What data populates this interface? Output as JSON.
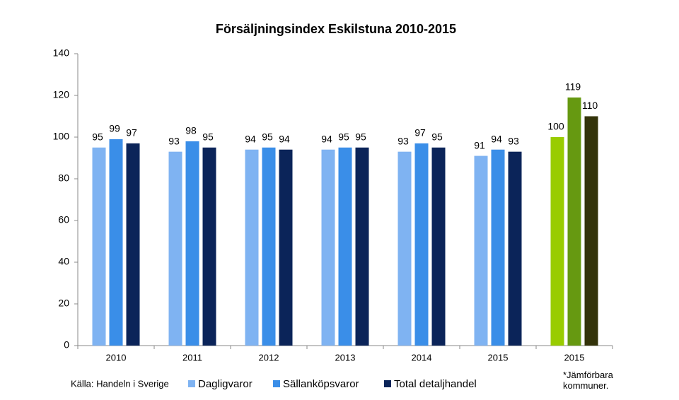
{
  "chart_data": {
    "type": "bar",
    "title": "Försäljningsindex Eskilstuna 2010-2015",
    "categories": [
      "2010",
      "2011",
      "2012",
      "2013",
      "2014",
      "2015",
      "2015"
    ],
    "series": [
      {
        "name": "Dagligvaror",
        "color": "#7fb3f2",
        "values": [
          95,
          93,
          94,
          94,
          93,
          91,
          100
        ],
        "colors": [
          "#7fb3f2",
          "#7fb3f2",
          "#7fb3f2",
          "#7fb3f2",
          "#7fb3f2",
          "#7fb3f2",
          "#99cc00"
        ]
      },
      {
        "name": "Sällanköpsvaror",
        "color": "#3a8ee8",
        "values": [
          99,
          98,
          95,
          95,
          97,
          94,
          119
        ],
        "colors": [
          "#3a8ee8",
          "#3a8ee8",
          "#3a8ee8",
          "#3a8ee8",
          "#3a8ee8",
          "#3a8ee8",
          "#669911"
        ]
      },
      {
        "name": "Total detaljhandel",
        "color": "#0b2459",
        "values": [
          97,
          95,
          94,
          95,
          95,
          93,
          110
        ],
        "colors": [
          "#0b2459",
          "#0b2459",
          "#0b2459",
          "#0b2459",
          "#0b2459",
          "#0b2459",
          "#33330a"
        ]
      }
    ],
    "ylim": [
      0,
      140
    ],
    "yticks": [
      0,
      20,
      40,
      60,
      80,
      100,
      120,
      140
    ],
    "grid": false,
    "source": "Källa: Handeln i Sverige",
    "note": "*Jämförbara kommuner."
  }
}
